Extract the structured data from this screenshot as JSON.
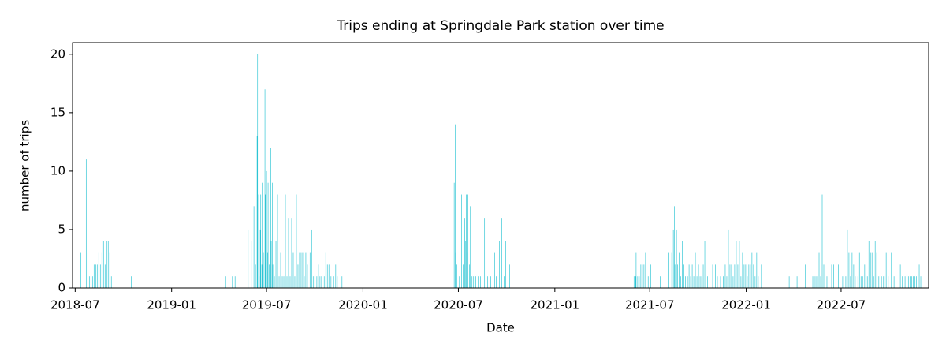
{
  "chart_data": {
    "type": "bar",
    "title": "Trips ending at Springdale Park station over time",
    "xlabel": "Date",
    "ylabel": "number of trips",
    "color": "#17becf",
    "xlim": [
      "2018-06-26",
      "2022-12-15"
    ],
    "xticks": [
      "2018-07",
      "2019-01",
      "2019-07",
      "2020-01",
      "2020-07",
      "2021-01",
      "2021-07",
      "2022-01",
      "2022-07"
    ],
    "ylim": [
      0,
      21
    ],
    "yticks": [
      0,
      5,
      10,
      15,
      20
    ],
    "grid": false,
    "x": [
      "2018-07-10",
      "2018-07-12",
      "2018-07-22",
      "2018-07-25",
      "2018-07-28",
      "2018-07-31",
      "2018-08-03",
      "2018-08-06",
      "2018-08-09",
      "2018-08-12",
      "2018-08-15",
      "2018-08-18",
      "2018-08-21",
      "2018-08-24",
      "2018-08-27",
      "2018-08-30",
      "2018-09-02",
      "2018-09-05",
      "2018-09-08",
      "2018-09-13",
      "2018-10-10",
      "2018-10-16",
      "2019-04-14",
      "2019-04-27",
      "2019-05-02",
      "2019-05-27",
      "2019-06-02",
      "2019-06-07",
      "2019-06-10",
      "2019-06-13",
      "2019-06-14",
      "2019-06-16",
      "2019-06-17",
      "2019-06-19",
      "2019-06-20",
      "2019-06-22",
      "2019-06-23",
      "2019-06-25",
      "2019-06-28",
      "2019-06-29",
      "2019-07-01",
      "2019-07-03",
      "2019-07-04",
      "2019-07-06",
      "2019-07-09",
      "2019-07-10",
      "2019-07-12",
      "2019-07-13",
      "2019-07-15",
      "2019-07-16",
      "2019-07-19",
      "2019-07-22",
      "2019-07-25",
      "2019-07-28",
      "2019-07-31",
      "2019-08-03",
      "2019-08-06",
      "2019-08-09",
      "2019-08-12",
      "2019-08-15",
      "2019-08-18",
      "2019-08-21",
      "2019-08-24",
      "2019-08-27",
      "2019-08-30",
      "2019-09-02",
      "2019-09-05",
      "2019-09-08",
      "2019-09-11",
      "2019-09-14",
      "2019-09-17",
      "2019-09-22",
      "2019-09-25",
      "2019-09-28",
      "2019-10-01",
      "2019-10-05",
      "2019-10-08",
      "2019-10-11",
      "2019-10-14",
      "2019-10-19",
      "2019-10-22",
      "2019-10-25",
      "2019-10-28",
      "2019-11-01",
      "2019-11-06",
      "2019-11-10",
      "2019-11-13",
      "2019-11-22",
      "2020-06-23",
      "2020-06-25",
      "2020-06-26",
      "2020-06-28",
      "2020-07-03",
      "2020-07-07",
      "2020-07-10",
      "2020-07-12",
      "2020-07-13",
      "2020-07-15",
      "2020-07-16",
      "2020-07-18",
      "2020-07-19",
      "2020-07-22",
      "2020-07-24",
      "2020-07-27",
      "2020-07-30",
      "2020-08-03",
      "2020-08-08",
      "2020-08-12",
      "2020-08-20",
      "2020-08-26",
      "2020-09-01",
      "2020-09-05",
      "2020-09-08",
      "2020-09-11",
      "2020-09-17",
      "2020-09-20",
      "2020-09-22",
      "2020-09-26",
      "2020-09-29",
      "2020-10-04",
      "2020-10-07",
      "2021-06-01",
      "2021-06-04",
      "2021-06-05",
      "2021-06-08",
      "2021-06-11",
      "2021-06-14",
      "2021-06-17",
      "2021-06-20",
      "2021-06-23",
      "2021-06-28",
      "2021-07-03",
      "2021-07-09",
      "2021-07-21",
      "2021-08-05",
      "2021-08-12",
      "2021-08-15",
      "2021-08-17",
      "2021-08-18",
      "2021-08-20",
      "2021-08-21",
      "2021-08-23",
      "2021-08-26",
      "2021-08-29",
      "2021-09-01",
      "2021-09-04",
      "2021-09-07",
      "2021-09-11",
      "2021-09-14",
      "2021-09-17",
      "2021-09-20",
      "2021-09-23",
      "2021-09-26",
      "2021-09-29",
      "2021-10-02",
      "2021-10-05",
      "2021-10-08",
      "2021-10-11",
      "2021-10-14",
      "2021-10-19",
      "2021-10-29",
      "2021-11-03",
      "2021-11-07",
      "2021-11-13",
      "2021-11-18",
      "2021-11-22",
      "2021-11-25",
      "2021-11-28",
      "2021-12-01",
      "2021-12-04",
      "2021-12-07",
      "2021-12-10",
      "2021-12-13",
      "2021-12-16",
      "2021-12-19",
      "2021-12-22",
      "2021-12-25",
      "2021-12-28",
      "2021-12-31",
      "2022-01-03",
      "2022-01-06",
      "2022-01-09",
      "2022-01-12",
      "2022-01-15",
      "2022-01-18",
      "2022-01-21",
      "2022-01-24",
      "2022-01-30",
      "2022-03-24",
      "2022-04-08",
      "2022-04-24",
      "2022-05-08",
      "2022-05-11",
      "2022-05-14",
      "2022-05-17",
      "2022-05-20",
      "2022-05-23",
      "2022-05-26",
      "2022-05-29",
      "2022-06-04",
      "2022-06-13",
      "2022-06-17",
      "2022-06-26",
      "2022-07-04",
      "2022-07-10",
      "2022-07-13",
      "2022-07-16",
      "2022-07-19",
      "2022-07-22",
      "2022-07-25",
      "2022-07-28",
      "2022-08-02",
      "2022-08-05",
      "2022-08-08",
      "2022-08-11",
      "2022-08-15",
      "2022-08-20",
      "2022-08-23",
      "2022-08-26",
      "2022-08-29",
      "2022-09-01",
      "2022-09-04",
      "2022-09-07",
      "2022-09-11",
      "2022-09-16",
      "2022-09-20",
      "2022-09-25",
      "2022-09-29",
      "2022-10-05",
      "2022-10-10",
      "2022-10-22",
      "2022-10-26",
      "2022-10-31",
      "2022-11-04",
      "2022-11-07",
      "2022-11-10",
      "2022-11-13",
      "2022-11-16",
      "2022-11-19",
      "2022-11-22",
      "2022-11-27",
      "2022-11-30"
    ],
    "values": [
      6,
      3,
      11,
      3,
      1,
      1,
      1,
      2,
      2,
      2,
      3,
      2,
      3,
      4,
      2,
      4,
      4,
      3,
      1,
      1,
      2,
      1,
      1,
      1,
      1,
      5,
      4,
      7,
      2,
      13,
      20,
      8,
      1,
      5,
      8,
      2,
      9,
      3,
      17,
      8,
      10,
      3,
      9,
      2,
      12,
      4,
      9,
      2,
      4,
      1,
      4,
      8,
      1,
      3,
      1,
      1,
      8,
      1,
      6,
      1,
      6,
      3,
      1,
      8,
      2,
      3,
      3,
      3,
      1,
      3,
      2,
      3,
      5,
      1,
      1,
      1,
      2,
      1,
      1,
      1,
      3,
      2,
      2,
      1,
      1,
      2,
      1,
      1,
      9,
      14,
      3,
      2,
      1,
      8,
      2,
      5,
      6,
      4,
      8,
      3,
      8,
      2,
      7,
      1,
      1,
      1,
      1,
      1,
      6,
      1,
      1,
      12,
      3,
      1,
      4,
      2,
      6,
      1,
      4,
      2,
      2,
      1,
      1,
      3,
      1,
      1,
      2,
      2,
      2,
      3,
      1,
      2,
      3,
      1,
      3,
      3,
      5,
      7,
      2,
      3,
      5,
      2,
      3,
      1,
      4,
      2,
      1,
      1,
      2,
      1,
      2,
      1,
      3,
      1,
      2,
      1,
      1,
      2,
      4,
      1,
      2,
      2,
      1,
      1,
      1,
      2,
      1,
      5,
      2,
      2,
      1,
      2,
      4,
      2,
      4,
      1,
      3,
      2,
      2,
      1,
      2,
      2,
      3,
      2,
      1,
      3,
      1,
      2,
      1,
      1,
      2,
      1,
      1,
      1,
      1,
      3,
      1,
      8,
      2,
      1,
      2,
      2,
      2,
      1,
      1,
      5,
      3,
      1,
      3,
      2,
      1,
      1,
      3,
      1,
      1,
      2,
      1,
      4,
      3,
      3,
      1,
      4,
      3,
      1,
      1,
      1,
      3,
      1,
      3,
      1,
      2,
      1,
      1,
      1,
      1,
      1,
      1,
      1,
      1,
      1,
      2,
      1
    ]
  }
}
